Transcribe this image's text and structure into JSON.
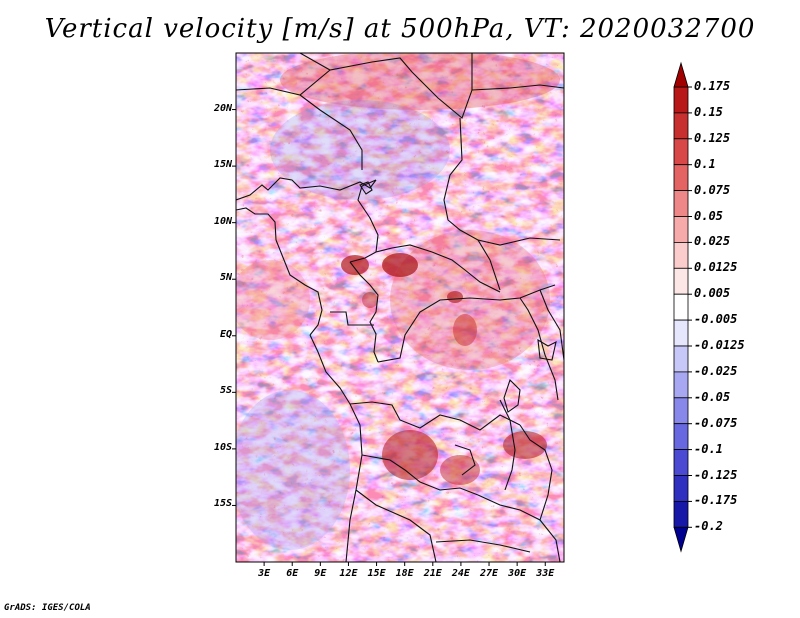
{
  "title": "Vertical velocity [m/s] at 500hPa, VT: 2020032700",
  "credit": "GrADS: IGES/COLA",
  "map": {
    "lat_labels": [
      "20N",
      "15N",
      "10N",
      "5N",
      "EQ",
      "5S",
      "10S",
      "15S"
    ],
    "lat_values": [
      20,
      15,
      10,
      5,
      0,
      -5,
      -10,
      -15
    ],
    "lon_labels": [
      "3E",
      "6E",
      "9E",
      "12E",
      "15E",
      "18E",
      "21E",
      "24E",
      "27E",
      "30E",
      "33E"
    ],
    "lon_values": [
      3,
      6,
      9,
      12,
      15,
      18,
      21,
      24,
      27,
      30,
      33
    ],
    "lon_range": [
      0,
      35
    ],
    "lat_range": [
      -20,
      25
    ]
  },
  "colorbar": {
    "levels": [
      "0.175",
      "0.15",
      "0.125",
      "0.1",
      "0.075",
      "0.05",
      "0.025",
      "0.0125",
      "0.005",
      "-0.005",
      "-0.0125",
      "-0.025",
      "-0.05",
      "-0.075",
      "-0.1",
      "-0.125",
      "-0.175",
      "-0.2"
    ],
    "colors": [
      "#a00000",
      "#b81818",
      "#c83030",
      "#d84848",
      "#e46464",
      "#ee8888",
      "#f6aaaa",
      "#fbcccc",
      "#fde6e6",
      "#ffffff",
      "#e6e6fd",
      "#c8c8f8",
      "#a8a8f2",
      "#8888ea",
      "#6868e0",
      "#4a4ad2",
      "#3030c0",
      "#1818a8",
      "#000090"
    ]
  }
}
